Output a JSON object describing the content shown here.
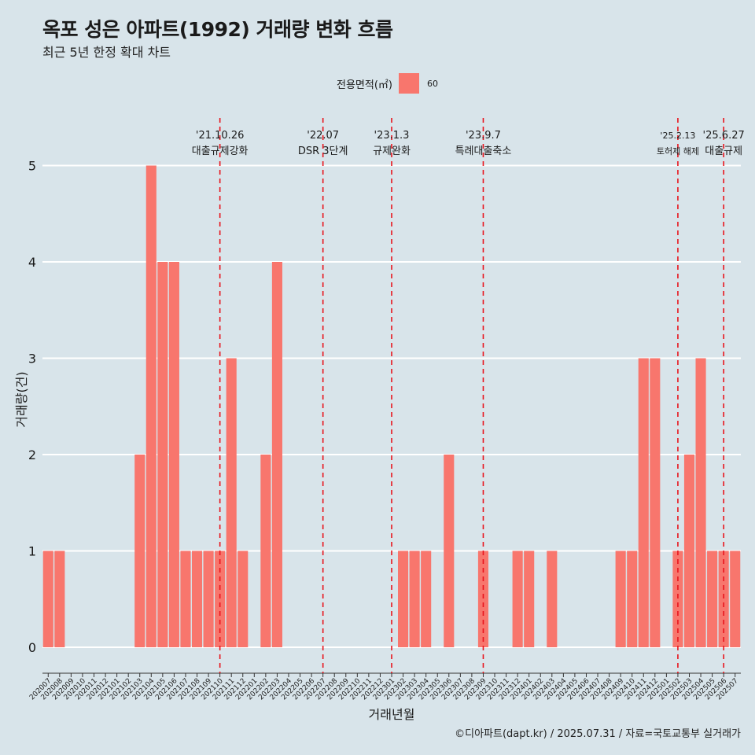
{
  "title": "옥포 성은 아파트(1992) 거래량 변화 흐름",
  "subtitle": "최근 5년 한정 확대 차트",
  "caption": "©디아파트(dapt.kr) / 2025.07.31 / 자료=국토교통부 실거래가",
  "legend": {
    "title": "전용면적(㎡)",
    "item": "60",
    "color": "#f8766d"
  },
  "colors": {
    "background": "#d8e4ea",
    "bar": "#f8766d",
    "grid": "#ffffff",
    "event_line": "#e8141c"
  },
  "chart_data": {
    "type": "bar",
    "xlabel": "거래년월",
    "ylabel": "거래량(건)",
    "ylim": [
      0,
      5
    ],
    "yticks": [
      0,
      1,
      2,
      3,
      4,
      5
    ],
    "legend_position": "top",
    "categories": [
      "202007",
      "202008",
      "202009",
      "202010",
      "202011",
      "202012",
      "202101",
      "202102",
      "202103",
      "202104",
      "202105",
      "202106",
      "202107",
      "202108",
      "202109",
      "202110",
      "202111",
      "202112",
      "202201",
      "202202",
      "202203",
      "202204",
      "202205",
      "202206",
      "202207",
      "202208",
      "202209",
      "202210",
      "202211",
      "202212",
      "202301",
      "202302",
      "202303",
      "202304",
      "202305",
      "202306",
      "202307",
      "202308",
      "202309",
      "202310",
      "202311",
      "202312",
      "202401",
      "202402",
      "202403",
      "202404",
      "202405",
      "202406",
      "202407",
      "202408",
      "202409",
      "202410",
      "202411",
      "202412",
      "202501",
      "202502",
      "202503",
      "202504",
      "202505",
      "202506",
      "202507"
    ],
    "series": [
      {
        "name": "60",
        "values": [
          1,
          1,
          0,
          0,
          0,
          0,
          0,
          0,
          2,
          5,
          4,
          4,
          1,
          1,
          1,
          1,
          3,
          1,
          0,
          2,
          4,
          0,
          0,
          0,
          0,
          0,
          0,
          0,
          0,
          0,
          0,
          1,
          1,
          1,
          0,
          2,
          0,
          0,
          1,
          0,
          0,
          1,
          1,
          0,
          1,
          0,
          0,
          0,
          0,
          0,
          1,
          1,
          3,
          3,
          0,
          1,
          2,
          3,
          1,
          1,
          1
        ]
      }
    ],
    "annotations": [
      {
        "date": "'21.10.26",
        "label": "대출규제강화",
        "category": "202110"
      },
      {
        "date": "'22.07",
        "label": "DSR 3단계",
        "category": "202207"
      },
      {
        "date": "'23.1.3",
        "label": "규제완화",
        "category": "202301"
      },
      {
        "date": "'23.9.7",
        "label": "특례대출축소",
        "category": "202309"
      },
      {
        "date": "'25.2.13",
        "label": "토허제 해제",
        "category": "202502"
      },
      {
        "date": "'25.6.27",
        "label": "대출규제",
        "category": "202506"
      }
    ]
  }
}
